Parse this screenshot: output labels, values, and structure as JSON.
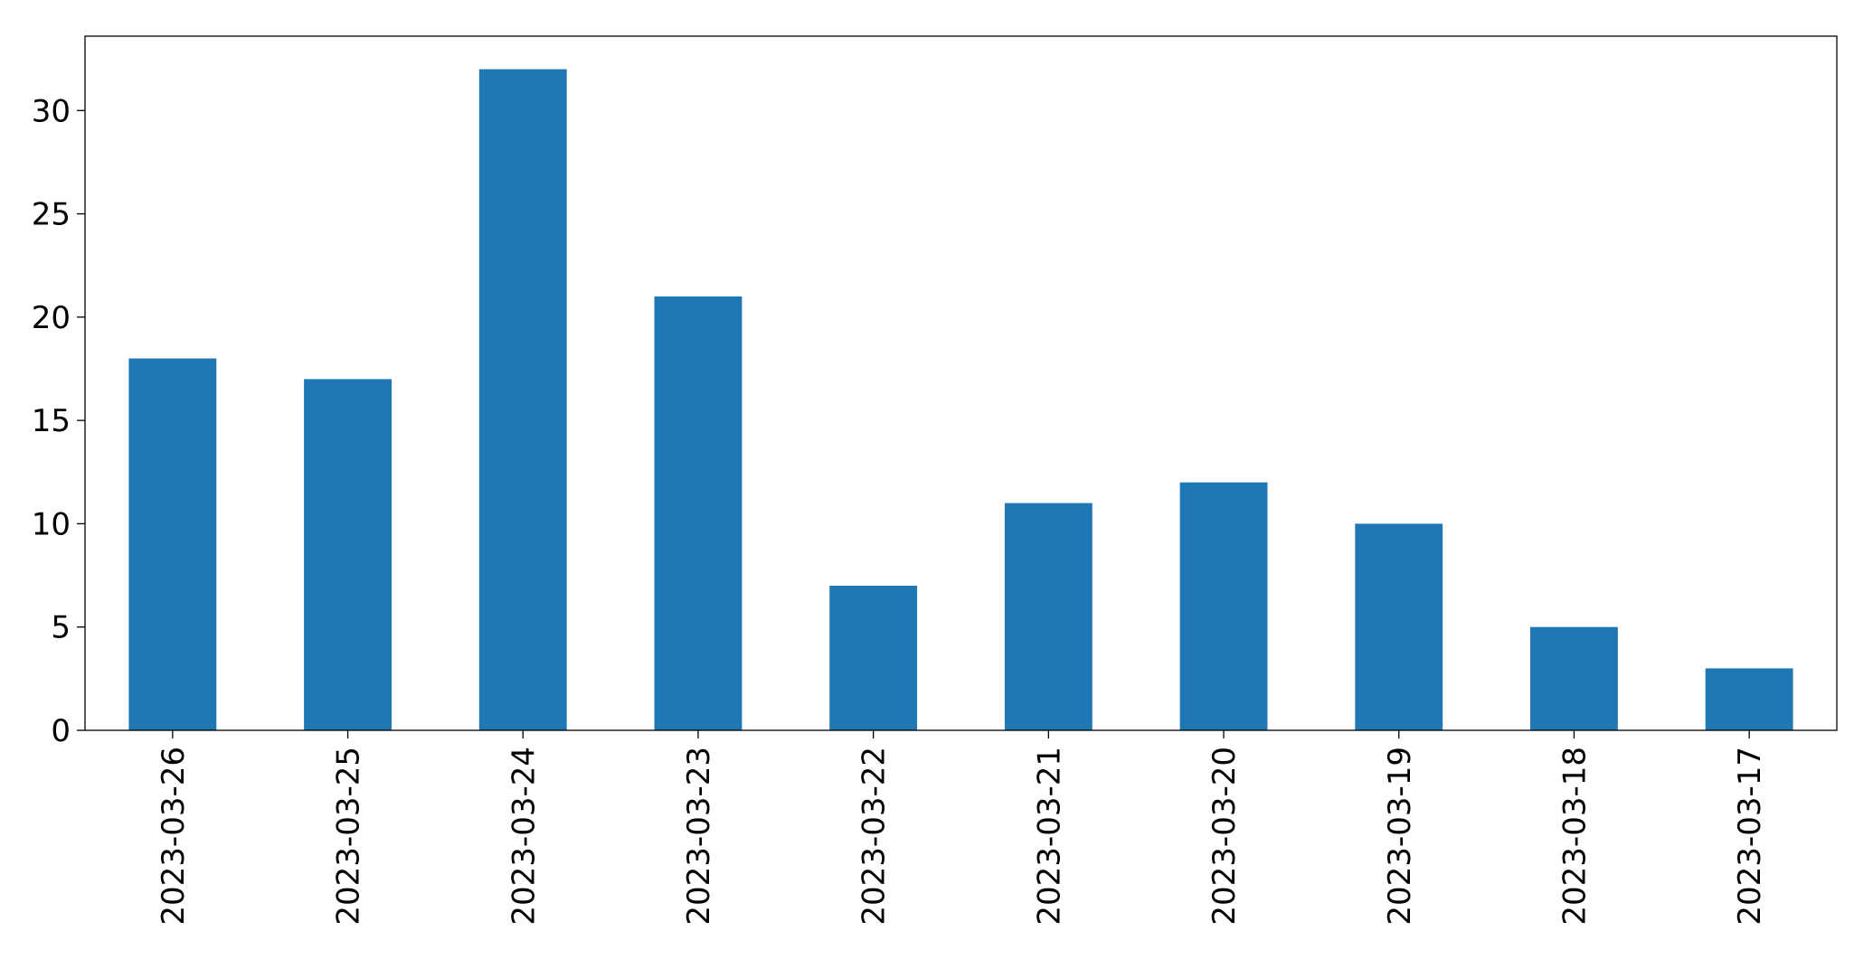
{
  "chart_data": {
    "type": "bar",
    "categories": [
      "2023-03-26",
      "2023-03-25",
      "2023-03-24",
      "2023-03-23",
      "2023-03-22",
      "2023-03-21",
      "2023-03-20",
      "2023-03-19",
      "2023-03-18",
      "2023-03-17"
    ],
    "values": [
      18,
      17,
      32,
      21,
      7,
      11,
      12,
      10,
      5,
      3
    ],
    "color": "#1f77b4",
    "ylim": [
      0,
      33.6
    ],
    "yticks": [
      0,
      5,
      10,
      15,
      20,
      25,
      30
    ],
    "grid": false
  }
}
